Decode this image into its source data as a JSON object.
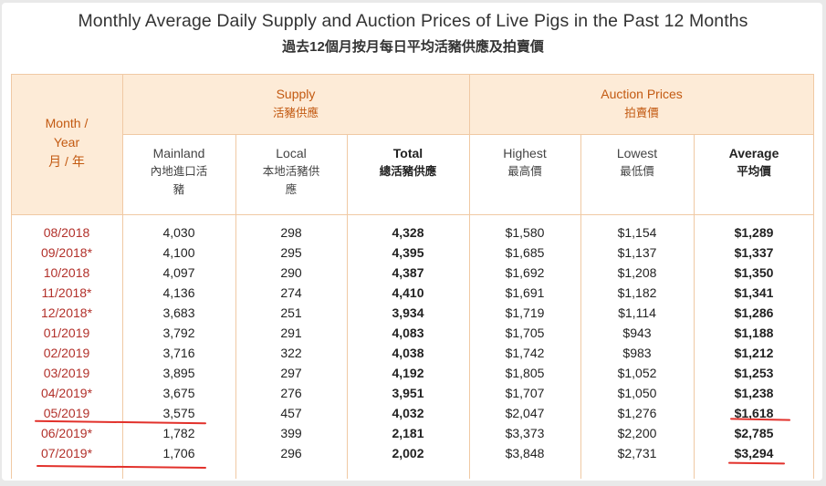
{
  "title_en": "Monthly Average Daily Supply and Auction Prices of Live Pigs in the Past 12 Months",
  "title_zh": "過去12個月按月每日平均活豬供應及拍賣價",
  "header": {
    "month_year_en_1": "Month /",
    "month_year_en_2": "Year",
    "month_year_zh": "月 / 年",
    "supply_en": "Supply",
    "supply_zh": "活豬供應",
    "auction_en": "Auction Prices",
    "auction_zh": "拍賣價",
    "mainland_en": "Mainland",
    "mainland_zh_1": "內地進口活",
    "mainland_zh_2": "豬",
    "local_en": "Local",
    "local_zh_1": "本地活豬供",
    "local_zh_2": "應",
    "total_en": "Total",
    "total_zh": "總活豬供應",
    "highest_en": "Highest",
    "highest_zh": "最高價",
    "lowest_en": "Lowest",
    "lowest_zh": "最低價",
    "average_en": "Average",
    "average_zh": "平均價"
  },
  "rows": [
    {
      "month": "08/2018",
      "mainland": "4,030",
      "local": "298",
      "total": "4,328",
      "highest": "$1,580",
      "lowest": "$1,154",
      "average": "$1,289"
    },
    {
      "month": "09/2018*",
      "mainland": "4,100",
      "local": "295",
      "total": "4,395",
      "highest": "$1,685",
      "lowest": "$1,137",
      "average": "$1,337"
    },
    {
      "month": "10/2018",
      "mainland": "4,097",
      "local": "290",
      "total": "4,387",
      "highest": "$1,692",
      "lowest": "$1,208",
      "average": "$1,350"
    },
    {
      "month": "11/2018*",
      "mainland": "4,136",
      "local": "274",
      "total": "4,410",
      "highest": "$1,691",
      "lowest": "$1,182",
      "average": "$1,341"
    },
    {
      "month": "12/2018*",
      "mainland": "3,683",
      "local": "251",
      "total": "3,934",
      "highest": "$1,719",
      "lowest": "$1,114",
      "average": "$1,286"
    },
    {
      "month": "01/2019",
      "mainland": "3,792",
      "local": "291",
      "total": "4,083",
      "highest": "$1,705",
      "lowest": "$943",
      "average": "$1,188"
    },
    {
      "month": "02/2019",
      "mainland": "3,716",
      "local": "322",
      "total": "4,038",
      "highest": "$1,742",
      "lowest": "$983",
      "average": "$1,212"
    },
    {
      "month": "03/2019",
      "mainland": "3,895",
      "local": "297",
      "total": "4,192",
      "highest": "$1,805",
      "lowest": "$1,052",
      "average": "$1,253"
    },
    {
      "month": "04/2019*",
      "mainland": "3,675",
      "local": "276",
      "total": "3,951",
      "highest": "$1,707",
      "lowest": "$1,050",
      "average": "$1,238"
    },
    {
      "month": "05/2019",
      "mainland": "3,575",
      "local": "457",
      "total": "4,032",
      "highest": "$2,047",
      "lowest": "$1,276",
      "average": "$1,618"
    },
    {
      "month": "06/2019*",
      "mainland": "1,782",
      "local": "399",
      "total": "2,181",
      "highest": "$3,373",
      "lowest": "$2,200",
      "average": "$2,785"
    },
    {
      "month": "07/2019*",
      "mainland": "1,706",
      "local": "296",
      "total": "2,002",
      "highest": "$3,848",
      "lowest": "$2,731",
      "average": "$3,294"
    }
  ],
  "colors": {
    "header_fill": "#fdebd7",
    "header_text": "#c35a12",
    "month_text": "#b2302a",
    "annotation_red": "#e2312b"
  }
}
